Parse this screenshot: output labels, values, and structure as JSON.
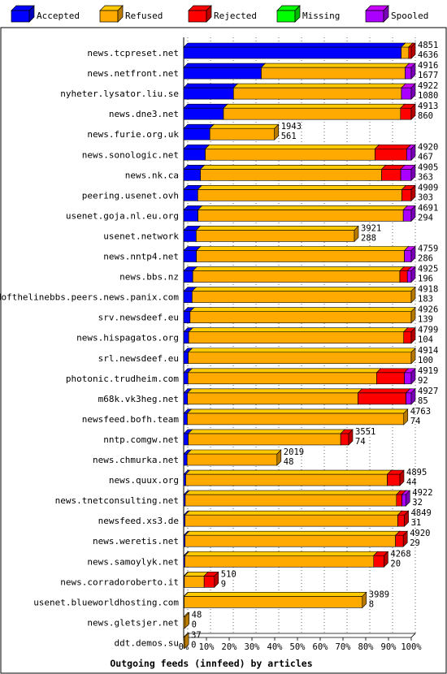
{
  "chart_data": {
    "type": "bar",
    "title": "Outgoing feeds (innfeed) by articles",
    "xlim": [
      0,
      100
    ],
    "x_unit": "percent",
    "ticks": [
      "0%",
      "10%",
      "20%",
      "30%",
      "40%",
      "50%",
      "60%",
      "70%",
      "80%",
      "90%",
      "100%"
    ],
    "legend_position": "top",
    "series": [
      {
        "name": "Accepted",
        "color": "#0000ff"
      },
      {
        "name": "Refused",
        "color": "#ffaa00"
      },
      {
        "name": "Rejected",
        "color": "#ff0000"
      },
      {
        "name": "Missing",
        "color": "#00ff00"
      },
      {
        "name": "Spooled",
        "color": "#aa00ff"
      }
    ],
    "categories": [
      {
        "name": "news.tcpreset.net",
        "total": "4851",
        "accepted": "4636",
        "pct": [
          95.6,
          3.3,
          1.1,
          0,
          0
        ]
      },
      {
        "name": "news.netfront.net",
        "total": "4916",
        "accepted": "1677",
        "pct": [
          34.1,
          63.2,
          0,
          0,
          2.7
        ]
      },
      {
        "name": "nyheter.lysator.liu.se",
        "total": "4922",
        "accepted": "1080",
        "pct": [
          21.9,
          73.8,
          0,
          0,
          4.3
        ]
      },
      {
        "name": "news.dne3.net",
        "total": "4913",
        "accepted": "860",
        "pct": [
          17.5,
          77.8,
          4.7,
          0,
          0
        ]
      },
      {
        "name": "news.furie.org.uk",
        "total": "1943",
        "accepted": "561",
        "pct": [
          11.5,
          28.4,
          0,
          0,
          0
        ]
      },
      {
        "name": "news.sonologic.net",
        "total": "4920",
        "accepted": "467",
        "pct": [
          9.5,
          74.6,
          13.9,
          0,
          2.0
        ]
      },
      {
        "name": "news.nk.ca",
        "total": "4905",
        "accepted": "363",
        "pct": [
          7.4,
          79.6,
          8.4,
          0,
          4.6
        ]
      },
      {
        "name": "peering.usenet.ovh",
        "total": "4909",
        "accepted": "303",
        "pct": [
          6.2,
          89.7,
          4.1,
          0,
          0
        ]
      },
      {
        "name": "usenet.goja.nl.eu.org",
        "total": "4691",
        "accepted": "294",
        "pct": [
          6.3,
          90.2,
          0,
          0,
          3.5
        ]
      },
      {
        "name": "usenet.network",
        "total": "3921",
        "accepted": "288",
        "pct": [
          5.5,
          69.5,
          0,
          0,
          0
        ]
      },
      {
        "name": "news.nntp4.net",
        "total": "4759",
        "accepted": "286",
        "pct": [
          5.6,
          91.4,
          0,
          0,
          3.0
        ]
      },
      {
        "name": "news.bbs.nz",
        "total": "4925",
        "accepted": "196",
        "pct": [
          4.0,
          91.0,
          3.3,
          0,
          1.7
        ]
      },
      {
        "name": "endofthelinebbs.peers.news.panix.com",
        "total": "4918",
        "accepted": "183",
        "pct": [
          3.7,
          96.3,
          0,
          0,
          0
        ]
      },
      {
        "name": "srv.newsdeef.eu",
        "total": "4926",
        "accepted": "139",
        "pct": [
          2.8,
          97.2,
          0,
          0,
          0
        ]
      },
      {
        "name": "news.hispagatos.org",
        "total": "4799",
        "accepted": "104",
        "pct": [
          2.2,
          94.5,
          3.3,
          0,
          0
        ]
      },
      {
        "name": "srl.newsdeef.eu",
        "total": "4914",
        "accepted": "100",
        "pct": [
          2.0,
          98.0,
          0,
          0,
          0
        ]
      },
      {
        "name": "photonic.trudheim.com",
        "total": "4919",
        "accepted": "92",
        "pct": [
          1.9,
          82.9,
          12.2,
          0,
          3.0
        ]
      },
      {
        "name": "m68k.vk3heg.net",
        "total": "4927",
        "accepted": "85",
        "pct": [
          1.7,
          74.9,
          21.1,
          0,
          2.3
        ]
      },
      {
        "name": "newsfeed.bofh.team",
        "total": "4763",
        "accepted": "74",
        "pct": [
          1.6,
          95.1,
          0,
          0,
          0
        ]
      },
      {
        "name": "nntp.comgw.net",
        "total": "3551",
        "accepted": "74",
        "pct": [
          2.0,
          67.0,
          3.5,
          0,
          0
        ]
      },
      {
        "name": "news.chmurka.net",
        "total": "2019",
        "accepted": "48",
        "pct": [
          1.5,
          39.5,
          0,
          0,
          0
        ]
      },
      {
        "name": "news.quux.org",
        "total": "4895",
        "accepted": "44",
        "pct": [
          0.9,
          88.6,
          5.5,
          0,
          0
        ]
      },
      {
        "name": "news.tnetconsulting.net",
        "total": "4922",
        "accepted": "32",
        "pct": [
          0.7,
          92.8,
          2.4,
          0,
          1.7
        ]
      },
      {
        "name": "newsfeed.xs3.de",
        "total": "4849",
        "accepted": "31",
        "pct": [
          0.6,
          93.5,
          2.9,
          0,
          0
        ]
      },
      {
        "name": "news.weretis.net",
        "total": "4920",
        "accepted": "29",
        "pct": [
          0.6,
          92.5,
          3.4,
          0,
          0
        ]
      },
      {
        "name": "news.samoylyk.net",
        "total": "4268",
        "accepted": "20",
        "pct": [
          0.5,
          83.0,
          4.5,
          0,
          0
        ]
      },
      {
        "name": "news.corradoroberto.it",
        "total": "510",
        "accepted": "9",
        "pct": [
          0.3,
          8.7,
          4.5,
          0,
          0
        ]
      },
      {
        "name": "usenet.blueworldhosting.com",
        "total": "3989",
        "accepted": "8",
        "pct": [
          0.2,
          78.3,
          0,
          0,
          0
        ]
      },
      {
        "name": "news.gletsjer.net",
        "total": "48",
        "accepted": "0",
        "pct": [
          0,
          0.6,
          0,
          0,
          0
        ]
      },
      {
        "name": "ddt.demos.su",
        "total": "37",
        "accepted": "0",
        "pct": [
          0,
          0.4,
          0,
          0,
          0
        ]
      }
    ]
  }
}
